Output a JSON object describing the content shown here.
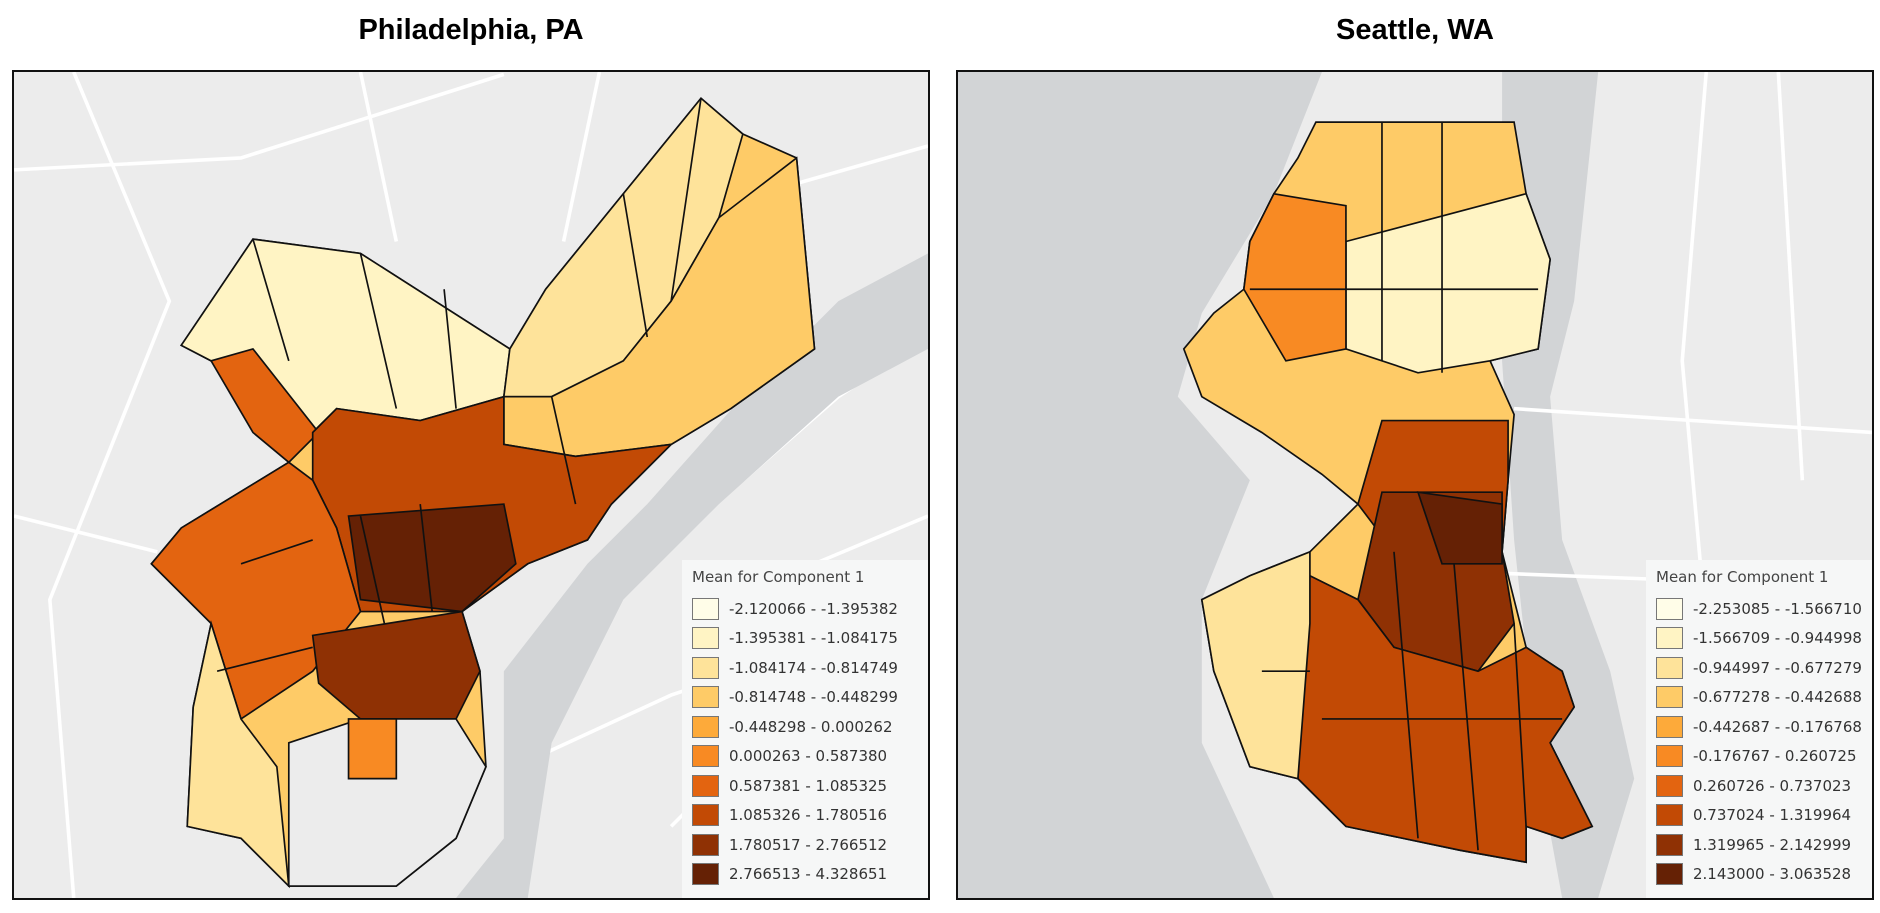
{
  "maps": [
    {
      "title": "Philadelphia, PA",
      "legend": {
        "title": "Mean for Component 1",
        "classes": [
          {
            "label": "-2.120066 - -1.395382",
            "color": "#fffde8"
          },
          {
            "label": "-1.395381 - -1.084175",
            "color": "#fff4c4"
          },
          {
            "label": "-1.084174 - -0.814749",
            "color": "#fee39a"
          },
          {
            "label": "-0.814748 - -0.448299",
            "color": "#fecb67"
          },
          {
            "label": "-0.448298 - 0.000262",
            "color": "#fdaa3a"
          },
          {
            "label": "0.000263 - 0.587380",
            "color": "#f88a23"
          },
          {
            "label": "0.587381 - 1.085325",
            "color": "#e36410"
          },
          {
            "label": "1.085326 - 1.780516",
            "color": "#c24a05"
          },
          {
            "label": "1.780517 - 2.766512",
            "color": "#8f3104"
          },
          {
            "label": "2.766513 - 4.328651",
            "color": "#652105"
          }
        ]
      }
    },
    {
      "title": "Seattle, WA",
      "legend": {
        "title": "Mean for Component 1",
        "classes": [
          {
            "label": "-2.253085 - -1.566710",
            "color": "#fffde8"
          },
          {
            "label": "-1.566709 - -0.944998",
            "color": "#fff4c4"
          },
          {
            "label": "-0.944997 - -0.677279",
            "color": "#fee39a"
          },
          {
            "label": "-0.677278 - -0.442688",
            "color": "#fecb67"
          },
          {
            "label": "-0.442687 - -0.176768",
            "color": "#fdaa3a"
          },
          {
            "label": "-0.176767 - 0.260725",
            "color": "#f88a23"
          },
          {
            "label": "0.260726 - 0.737023",
            "color": "#e36410"
          },
          {
            "label": "0.737024 - 1.319964",
            "color": "#c24a05"
          },
          {
            "label": "1.319965 - 2.142999",
            "color": "#8f3104"
          },
          {
            "label": "2.143000 - 3.063528",
            "color": "#652105"
          }
        ]
      }
    }
  ]
}
